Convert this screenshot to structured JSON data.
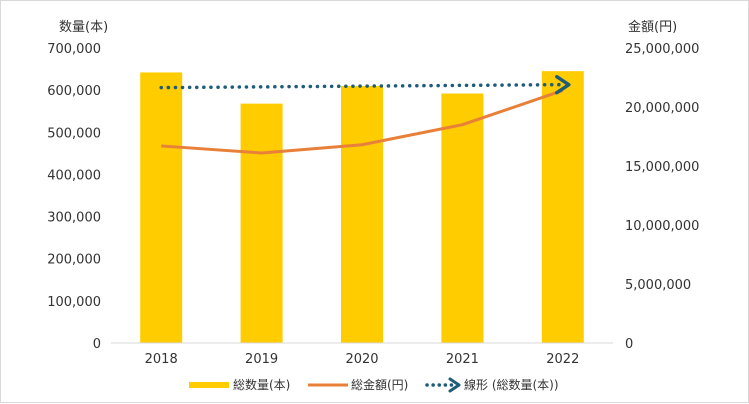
{
  "chart_data": {
    "type": "bar",
    "categories": [
      "2018",
      "2019",
      "2020",
      "2021",
      "2022"
    ],
    "y_left": {
      "title": "数量(本)",
      "range": [
        0,
        700000
      ],
      "ticks": [
        0,
        100000,
        200000,
        300000,
        400000,
        500000,
        600000,
        700000
      ],
      "tick_labels": [
        "0",
        "100,000",
        "200,000",
        "300,000",
        "400,000",
        "500,000",
        "600,000",
        "700,000"
      ]
    },
    "y_right": {
      "title": "金額(円)",
      "range": [
        0,
        25000000
      ],
      "ticks": [
        0,
        5000000,
        10000000,
        15000000,
        20000000,
        25000000
      ],
      "tick_labels": [
        "0",
        "5,000,000",
        "10,000,000",
        "15,000,000",
        "20,000,000",
        "25,000,000"
      ]
    },
    "series": [
      {
        "name": "総数量(本)",
        "type": "bar",
        "axis": "left",
        "color": "#FFCC00",
        "values": [
          642000,
          568000,
          610000,
          592000,
          645000
        ]
      },
      {
        "name": "総金額(円)",
        "type": "line",
        "axis": "right",
        "color": "#E8803A",
        "values": [
          16700000,
          16100000,
          16800000,
          18500000,
          21400000
        ]
      },
      {
        "name": "線形 (総数量(本))",
        "type": "trendline",
        "axis": "left",
        "color": "#1F5C78",
        "values": [
          606000,
          607000,
          609000,
          611000,
          613000
        ]
      }
    ],
    "legend": {
      "position": "bottom"
    },
    "grid": false
  }
}
